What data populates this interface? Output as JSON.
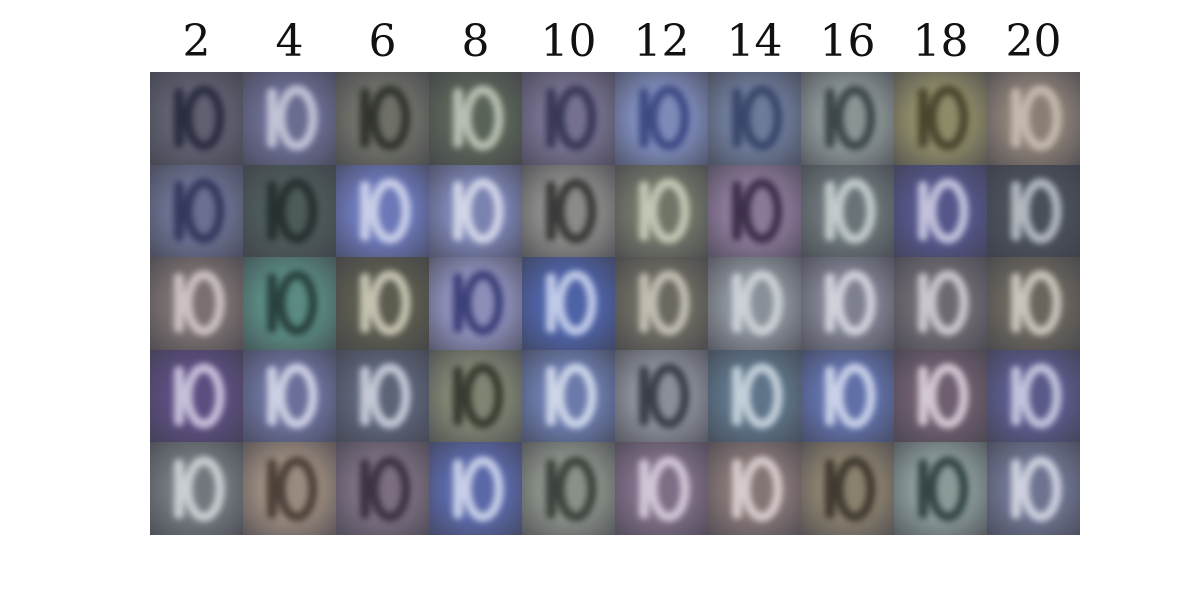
{
  "column_labels": [
    "2",
    "4",
    "6",
    "8",
    "10",
    "12",
    "14",
    "16",
    "18",
    "20"
  ],
  "samples": [
    [
      {
        "bg": "#5f6070",
        "fg": "#1f2035"
      },
      {
        "bg": "#6a6c90",
        "fg": "#d8d8e8"
      },
      {
        "bg": "#6e7068",
        "fg": "#232520"
      },
      {
        "bg": "#5a6358",
        "fg": "#cfd6c8"
      },
      {
        "bg": "#74708e",
        "fg": "#2b2a4a"
      },
      {
        "bg": "#7d8ab8",
        "fg": "#2f3a78"
      },
      {
        "bg": "#6d7a98",
        "fg": "#2c3a60"
      },
      {
        "bg": "#8a9494",
        "fg": "#2a3338"
      },
      {
        "bg": "#8d8a68",
        "fg": "#3a3420"
      },
      {
        "bg": "#8a7f76",
        "fg": "#d4c8bc"
      }
    ],
    [
      {
        "bg": "#6a7090",
        "fg": "#252c50"
      },
      {
        "bg": "#4d5a5a",
        "fg": "#1c2626"
      },
      {
        "bg": "#6c78b8",
        "fg": "#e0e4f4"
      },
      {
        "bg": "#7a82b0",
        "fg": "#e8eaf6"
      },
      {
        "bg": "#8a8a88",
        "fg": "#262626"
      },
      {
        "bg": "#707568",
        "fg": "#d6dcc8"
      },
      {
        "bg": "#8a7898",
        "fg": "#2a1e38"
      },
      {
        "bg": "#6a7478",
        "fg": "#d8e0e0"
      },
      {
        "bg": "#55568a",
        "fg": "#dcdcf0"
      },
      {
        "bg": "#4a505a",
        "fg": "#cdd2d8"
      }
    ],
    [
      {
        "bg": "#7a7070",
        "fg": "#e0d6d6"
      },
      {
        "bg": "#5a8a82",
        "fg": "#1e302e"
      },
      {
        "bg": "#5c5c50",
        "fg": "#e0dcc8"
      },
      {
        "bg": "#8c8eb8",
        "fg": "#2a2e6a"
      },
      {
        "bg": "#4e62a6",
        "fg": "#dce4f8"
      },
      {
        "bg": "#6c6a60",
        "fg": "#d6d2c6"
      },
      {
        "bg": "#8a9098",
        "fg": "#dde2e8"
      },
      {
        "bg": "#7e8090",
        "fg": "#e4e6ee"
      },
      {
        "bg": "#6e6a72",
        "fg": "#e2dee6"
      },
      {
        "bg": "#6a665e",
        "fg": "#e0dcd2"
      }
    ],
    [
      {
        "bg": "#5c4e80",
        "fg": "#e2dcf0"
      },
      {
        "bg": "#6a709a",
        "fg": "#e6e8f6"
      },
      {
        "bg": "#5c6478",
        "fg": "#dde2ee"
      },
      {
        "bg": "#7e8472",
        "fg": "#262a20"
      },
      {
        "bg": "#6a7aaa",
        "fg": "#e6ecf8"
      },
      {
        "bg": "#8a8e98",
        "fg": "#262a32"
      },
      {
        "bg": "#5e7488",
        "fg": "#dce6ee"
      },
      {
        "bg": "#6070a8",
        "fg": "#e2e8f8"
      },
      {
        "bg": "#6e5e6e",
        "fg": "#ece2ec"
      },
      {
        "bg": "#5a5a8a",
        "fg": "#dcdcf2"
      }
    ],
    [
      {
        "bg": "#72787e",
        "fg": "#e0e4e8"
      },
      {
        "bg": "#9a8a7e",
        "fg": "#3a2e28"
      },
      {
        "bg": "#7a6e80",
        "fg": "#2c2434"
      },
      {
        "bg": "#5a68a8",
        "fg": "#e2e8f8"
      },
      {
        "bg": "#8a9088",
        "fg": "#2a302a"
      },
      {
        "bg": "#7e6e86",
        "fg": "#e6dcec"
      },
      {
        "bg": "#857676",
        "fg": "#ebe0e0"
      },
      {
        "bg": "#8a806e",
        "fg": "#2e2820"
      },
      {
        "bg": "#8a9a98",
        "fg": "#1e3032"
      },
      {
        "bg": "#6e7490",
        "fg": "#e6e8f2"
      }
    ]
  ]
}
